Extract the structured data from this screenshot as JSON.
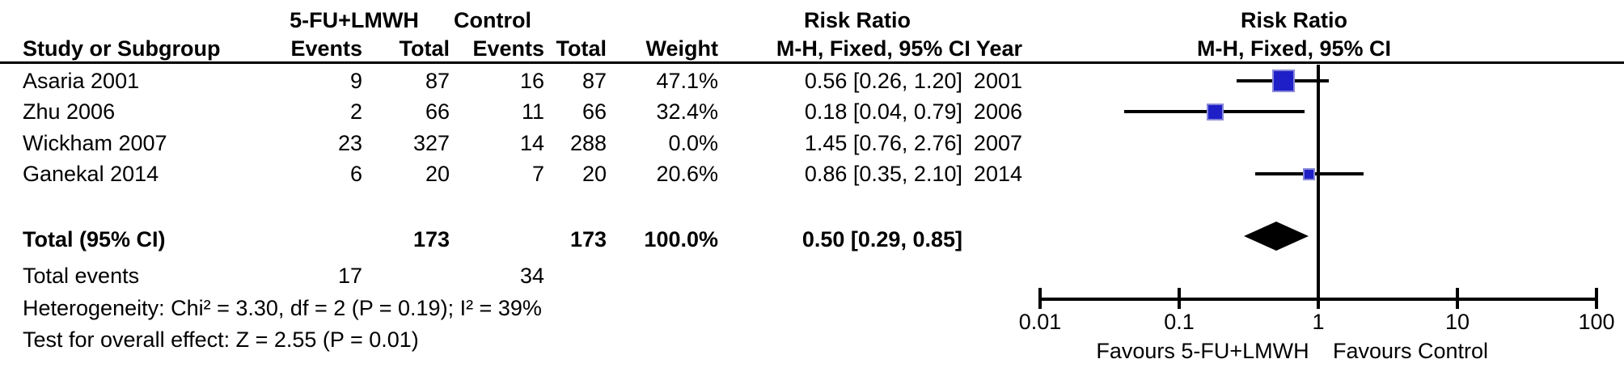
{
  "header": {
    "group1": "5-FU+LMWH",
    "group2": "Control",
    "risk_ratio_col": "Risk Ratio",
    "risk_ratio_plot": "Risk Ratio",
    "study": "Study or Subgroup",
    "events": "Events",
    "total": "Total",
    "events2": "Events",
    "total2": "Total",
    "weight": "Weight",
    "mh_fixed": "M-H, Fixed, 95% CI Year",
    "mh_fixed_plot": "M-H, Fixed, 95% CI"
  },
  "rows": [
    {
      "study": "Asaria 2001",
      "e1": "9",
      "t1": "87",
      "e2": "16",
      "t2": "87",
      "weight": "47.1%",
      "rr": "0.56 [0.26, 1.20]",
      "year": "2001"
    },
    {
      "study": "Zhu 2006",
      "e1": "2",
      "t1": "66",
      "e2": "11",
      "t2": "66",
      "weight": "32.4%",
      "rr": "0.18 [0.04, 0.79]",
      "year": "2006"
    },
    {
      "study": "Wickham 2007",
      "e1": "23",
      "t1": "327",
      "e2": "14",
      "t2": "288",
      "weight": "0.0%",
      "rr": "1.45 [0.76, 2.76]",
      "year": "2007"
    },
    {
      "study": "Ganekal 2014",
      "e1": "6",
      "t1": "20",
      "e2": "7",
      "t2": "20",
      "weight": "20.6%",
      "rr": "0.86 [0.35, 2.10]",
      "year": "2014"
    }
  ],
  "total_row": {
    "label": "Total (95% CI)",
    "t1": "173",
    "t2": "173",
    "weight": "100.0%",
    "rr": "0.50 [0.29, 0.85]"
  },
  "total_events": {
    "label": "Total events",
    "e1": "17",
    "e2": "34"
  },
  "stats": {
    "heterogeneity": "Heterogeneity: Chi² = 3.30, df = 2 (P = 0.19); I² = 39%",
    "overall_effect": "Test for overall effect: Z = 2.55 (P = 0.01)"
  },
  "axis": {
    "tick_labels": [
      "0.01",
      "0.1",
      "1",
      "10",
      "100"
    ],
    "favours_left": "Favours 5-FU+LMWH",
    "favours_right": "Favours Control"
  },
  "colors": {
    "marker_fill": "#1F1FC8",
    "marker_edge": "#8888D8",
    "diamond": "#000000",
    "line": "#000000"
  },
  "chart_data": {
    "type": "forest",
    "effect_measure": "Risk Ratio, M-H, Fixed, 95% CI",
    "scale": "log10",
    "x_ticks": [
      0.01,
      0.1,
      1,
      10,
      100
    ],
    "null_value": 1,
    "studies": [
      {
        "name": "Asaria 2001",
        "rr": 0.56,
        "ci_low": 0.26,
        "ci_high": 1.2,
        "weight_pct": 47.1,
        "year": 2001
      },
      {
        "name": "Zhu 2006",
        "rr": 0.18,
        "ci_low": 0.04,
        "ci_high": 0.79,
        "weight_pct": 32.4,
        "year": 2006
      },
      {
        "name": "Wickham 2007",
        "rr": 1.45,
        "ci_low": 0.76,
        "ci_high": 2.76,
        "weight_pct": 0.0,
        "year": 2007
      },
      {
        "name": "Ganekal 2014",
        "rr": 0.86,
        "ci_low": 0.35,
        "ci_high": 2.1,
        "weight_pct": 20.6,
        "year": 2014
      }
    ],
    "total": {
      "rr": 0.5,
      "ci_low": 0.29,
      "ci_high": 0.85,
      "weight_pct": 100.0
    },
    "xlabel_left": "Favours 5-FU+LMWH",
    "xlabel_right": "Favours Control"
  }
}
